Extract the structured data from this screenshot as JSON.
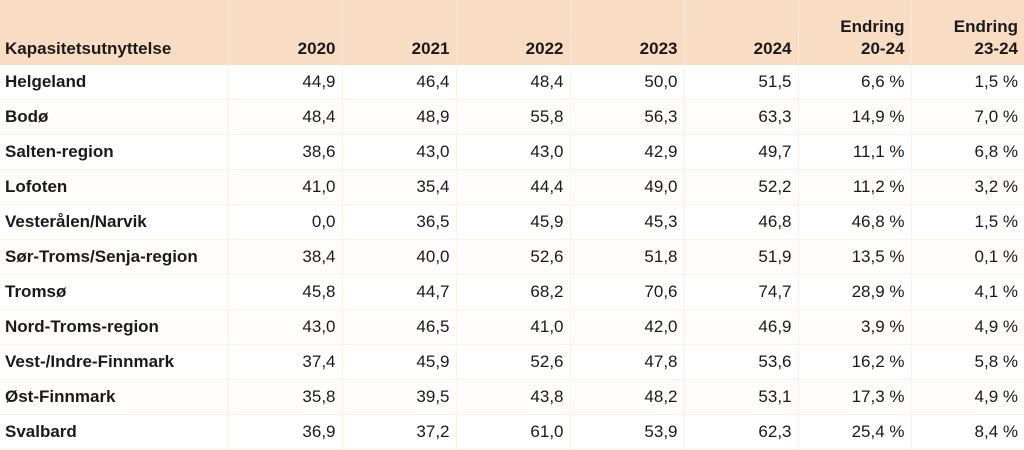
{
  "table": {
    "headers": [
      "Kapasitetsutnyttelse",
      "2020",
      "2021",
      "2022",
      "2023",
      "2024",
      [
        "Endring",
        "20-24"
      ],
      [
        "Endring",
        "23-24"
      ]
    ],
    "rows": [
      [
        "Helgeland",
        "44,9",
        "46,4",
        "48,4",
        "50,0",
        "51,5",
        "6,6 %",
        "1,5 %"
      ],
      [
        "Bodø",
        "48,4",
        "48,9",
        "55,8",
        "56,3",
        "63,3",
        "14,9 %",
        "7,0 %"
      ],
      [
        "Salten-region",
        "38,6",
        "43,0",
        "43,0",
        "42,9",
        "49,7",
        "11,1 %",
        "6,8 %"
      ],
      [
        "Lofoten",
        "41,0",
        "35,4",
        "44,4",
        "49,0",
        "52,2",
        "11,2 %",
        "3,2 %"
      ],
      [
        "Vesterålen/Narvik",
        "0,0",
        "36,5",
        "45,9",
        "45,3",
        "46,8",
        "46,8 %",
        "1,5 %"
      ],
      [
        "Sør-Troms/Senja-region",
        "38,4",
        "40,0",
        "52,6",
        "51,8",
        "51,9",
        "13,5 %",
        "0,1 %"
      ],
      [
        "Tromsø",
        "45,8",
        "44,7",
        "68,2",
        "70,6",
        "74,7",
        "28,9 %",
        "4,1 %"
      ],
      [
        "Nord-Troms-region",
        "43,0",
        "46,5",
        "41,0",
        "42,0",
        "46,9",
        "3,9 %",
        "4,9 %"
      ],
      [
        "Vest-/Indre-Finnmark",
        "37,4",
        "45,9",
        "52,6",
        "47,8",
        "53,6",
        "16,2 %",
        "5,8 %"
      ],
      [
        "Øst-Finnmark",
        "35,8",
        "39,5",
        "43,8",
        "48,2",
        "53,1",
        "17,3 %",
        "4,9 %"
      ],
      [
        "Svalbard",
        "36,9",
        "37,2",
        "61,0",
        "53,9",
        "62,3",
        "25,4 %",
        "8,4 %"
      ]
    ]
  },
  "colors": {
    "header_background": "#f8dcc4",
    "text": "#1a1a1a"
  }
}
